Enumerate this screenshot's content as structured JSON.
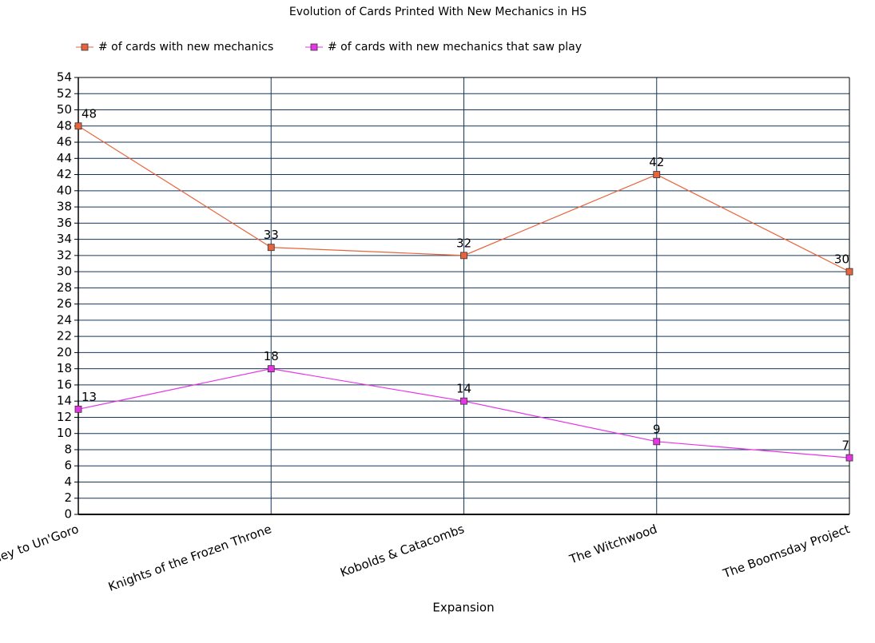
{
  "chart_data": {
    "type": "line",
    "title": "Evolution of Cards Printed With New Mechanics in HS",
    "x_label": "Expansion",
    "categories": [
      "Journey to Un'Goro",
      "Knights of the Frozen Throne",
      "Kobolds & Catacombs",
      "The Witchwood",
      "The Boomsday Project"
    ],
    "series": [
      {
        "name": "# of cards with new mechanics",
        "color": "#e8643c",
        "values": [
          48,
          33,
          32,
          42,
          30
        ]
      },
      {
        "name": "# of cards with new mechanics that saw play",
        "color": "#e535e5",
        "values": [
          13,
          18,
          14,
          9,
          7
        ]
      }
    ],
    "ylim": [
      0,
      54
    ],
    "yticks": [
      0,
      2,
      4,
      6,
      8,
      10,
      12,
      14,
      16,
      18,
      20,
      22,
      24,
      26,
      28,
      30,
      32,
      34,
      36,
      38,
      40,
      42,
      44,
      46,
      48,
      50,
      52,
      54
    ],
    "grid": true,
    "legend": "top"
  }
}
